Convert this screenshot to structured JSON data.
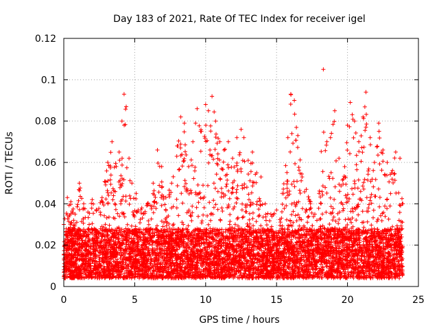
{
  "chart_data": {
    "type": "scatter",
    "title": "Day 183 of 2021, Rate Of TEC Index for receiver igel",
    "xlabel": "GPS time / hours",
    "ylabel": "ROTI / TECUs",
    "xlim": [
      0,
      25
    ],
    "ylim": [
      0,
      0.12
    ],
    "xticks": [
      "0",
      "5",
      "10",
      "15",
      "20",
      "25"
    ],
    "yticks": [
      "0",
      "0.02",
      "0.04",
      "0.06",
      "0.08",
      "0.1",
      "0.12"
    ],
    "grid": true,
    "marker": "plus",
    "color": "#ff0000",
    "series": [
      {
        "name": "",
        "x_range": [
          0,
          23.9
        ],
        "baseline": [
          0.004,
          0.028
        ],
        "envelope": [
          [
            0.0,
            0.03
          ],
          [
            0.25,
            0.043
          ],
          [
            0.5,
            0.041
          ],
          [
            0.8,
            0.035
          ],
          [
            1.1,
            0.05
          ],
          [
            1.4,
            0.04
          ],
          [
            1.7,
            0.036
          ],
          [
            2.0,
            0.042
          ],
          [
            2.3,
            0.037
          ],
          [
            2.7,
            0.043
          ],
          [
            3.1,
            0.06
          ],
          [
            3.4,
            0.07
          ],
          [
            3.7,
            0.058
          ],
          [
            3.9,
            0.065
          ],
          [
            4.1,
            0.08
          ],
          [
            4.25,
            0.093
          ],
          [
            4.4,
            0.087
          ],
          [
            4.6,
            0.062
          ],
          [
            4.8,
            0.05
          ],
          [
            5.1,
            0.045
          ],
          [
            5.5,
            0.038
          ],
          [
            5.9,
            0.04
          ],
          [
            6.3,
            0.05
          ],
          [
            6.6,
            0.066
          ],
          [
            6.9,
            0.058
          ],
          [
            7.2,
            0.043
          ],
          [
            7.6,
            0.05
          ],
          [
            8.0,
            0.068
          ],
          [
            8.25,
            0.082
          ],
          [
            8.5,
            0.079
          ],
          [
            8.8,
            0.058
          ],
          [
            9.1,
            0.07
          ],
          [
            9.4,
            0.086
          ],
          [
            9.7,
            0.075
          ],
          [
            10.0,
            0.088
          ],
          [
            10.2,
            0.085
          ],
          [
            10.45,
            0.092
          ],
          [
            10.7,
            0.08
          ],
          [
            11.0,
            0.07
          ],
          [
            11.3,
            0.066
          ],
          [
            11.6,
            0.07
          ],
          [
            11.9,
            0.062
          ],
          [
            12.2,
            0.072
          ],
          [
            12.5,
            0.076
          ],
          [
            12.7,
            0.072
          ],
          [
            13.0,
            0.061
          ],
          [
            13.3,
            0.065
          ],
          [
            13.6,
            0.055
          ],
          [
            13.9,
            0.053
          ],
          [
            14.2,
            0.04
          ],
          [
            14.6,
            0.035
          ],
          [
            15.0,
            0.037
          ],
          [
            15.4,
            0.045
          ],
          [
            15.8,
            0.072
          ],
          [
            16.0,
            0.093
          ],
          [
            16.25,
            0.09
          ],
          [
            16.5,
            0.073
          ],
          [
            16.8,
            0.053
          ],
          [
            17.1,
            0.047
          ],
          [
            17.4,
            0.041
          ],
          [
            17.7,
            0.035
          ],
          [
            18.0,
            0.045
          ],
          [
            18.3,
            0.105
          ],
          [
            18.55,
            0.07
          ],
          [
            18.8,
            0.072
          ],
          [
            19.1,
            0.085
          ],
          [
            19.4,
            0.062
          ],
          [
            19.7,
            0.052
          ],
          [
            20.0,
            0.078
          ],
          [
            20.2,
            0.089
          ],
          [
            20.5,
            0.08
          ],
          [
            20.8,
            0.07
          ],
          [
            21.1,
            0.082
          ],
          [
            21.3,
            0.094
          ],
          [
            21.6,
            0.072
          ],
          [
            21.9,
            0.06
          ],
          [
            22.2,
            0.079
          ],
          [
            22.5,
            0.066
          ],
          [
            22.8,
            0.06
          ],
          [
            23.1,
            0.055
          ],
          [
            23.4,
            0.065
          ],
          [
            23.7,
            0.062
          ],
          [
            23.9,
            0.04
          ]
        ]
      }
    ]
  }
}
